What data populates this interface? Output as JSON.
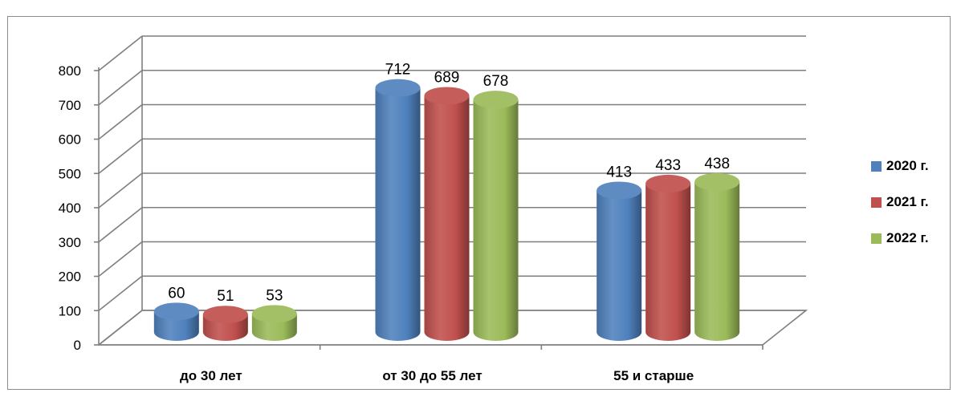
{
  "chart_data": {
    "type": "bar",
    "variant": "3d-cylinder-clustered",
    "categories": [
      "до 30 лет",
      "от 30 до 55 лет",
      "55 и старше"
    ],
    "series": [
      {
        "name": "2020 г.",
        "values": [
          60,
          712,
          413
        ],
        "color": "#4f81bd"
      },
      {
        "name": "2021 г.",
        "values": [
          51,
          689,
          433
        ],
        "color": "#c0504d"
      },
      {
        "name": "2022 г.",
        "values": [
          53,
          678,
          438
        ],
        "color": "#9bbb59"
      }
    ],
    "ylim": [
      0,
      800
    ],
    "yticks": [
      "0",
      "100",
      "200",
      "300",
      "400",
      "500",
      "600",
      "700",
      "800"
    ],
    "grid": true,
    "data_labels": true,
    "legend_position": "right"
  }
}
